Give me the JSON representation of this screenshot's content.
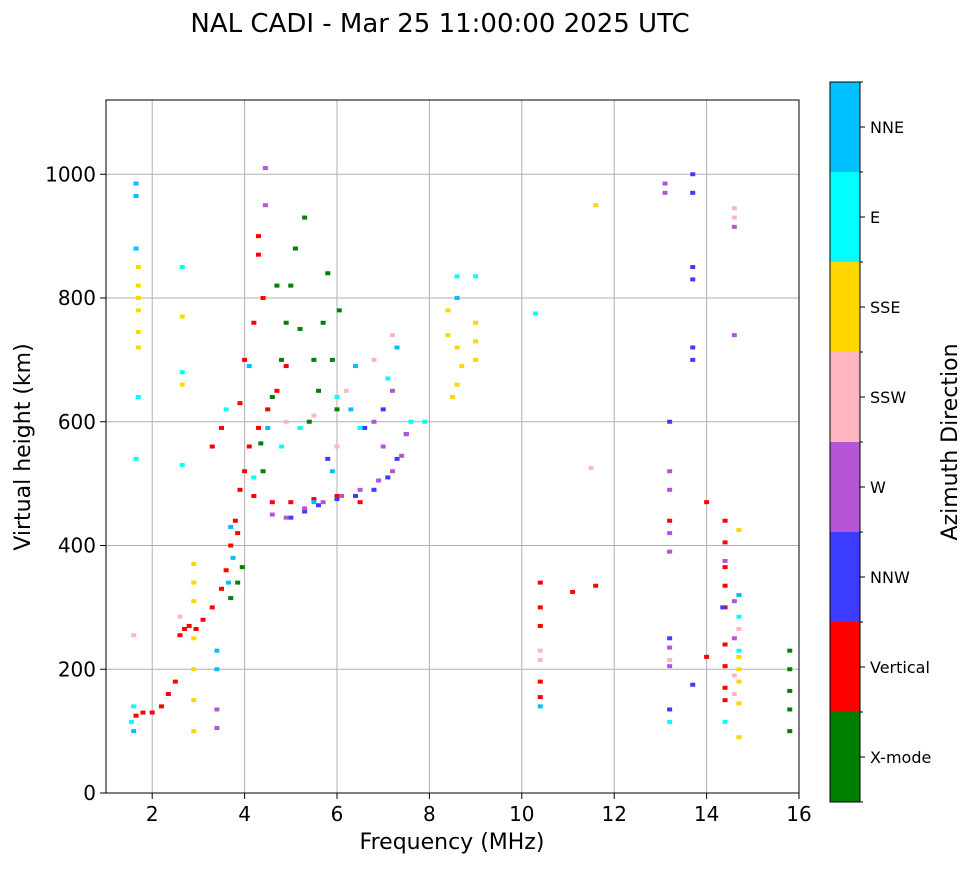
{
  "chart_data": {
    "type": "scatter",
    "title": "NAL CADI - Mar 25 11:00:00 2025 UTC",
    "xlabel": "Frequency (MHz)",
    "ylabel": "Virtual height (km)",
    "xlim": [
      1,
      16
    ],
    "ylim": [
      0,
      1120
    ],
    "xticks": [
      2,
      4,
      6,
      8,
      10,
      12,
      14,
      16
    ],
    "yticks": [
      0,
      200,
      400,
      600,
      800,
      1000
    ],
    "grid": true,
    "colorbar": {
      "label": "Azimuth Direction",
      "categories": [
        {
          "name": "X-mode",
          "color": "#008000"
        },
        {
          "name": "Vertical",
          "color": "#ff0000"
        },
        {
          "name": "NNW",
          "color": "#3c3cff"
        },
        {
          "name": "W",
          "color": "#b455d6"
        },
        {
          "name": "SSW",
          "color": "#ffb6c1"
        },
        {
          "name": "SSE",
          "color": "#ffd700"
        },
        {
          "name": "E",
          "color": "#00ffff"
        },
        {
          "name": "NNE",
          "color": "#00bfff"
        }
      ]
    },
    "series": [
      {
        "name": "X-mode",
        "points": [
          [
            3.7,
            315
          ],
          [
            3.85,
            340
          ],
          [
            3.95,
            365
          ],
          [
            4.35,
            565
          ],
          [
            4.6,
            640
          ],
          [
            4.8,
            700
          ],
          [
            4.9,
            760
          ],
          [
            5.0,
            820
          ],
          [
            5.1,
            880
          ],
          [
            5.3,
            930
          ],
          [
            5.5,
            700
          ],
          [
            5.6,
            650
          ],
          [
            5.7,
            760
          ],
          [
            5.8,
            840
          ],
          [
            5.9,
            700
          ],
          [
            6.0,
            620
          ],
          [
            6.05,
            780
          ],
          [
            4.7,
            820
          ],
          [
            5.2,
            750
          ],
          [
            5.4,
            600
          ],
          [
            4.4,
            520
          ],
          [
            15.8,
            230
          ],
          [
            15.8,
            200
          ],
          [
            15.8,
            165
          ],
          [
            15.8,
            135
          ],
          [
            15.8,
            100
          ]
        ]
      },
      {
        "name": "Vertical",
        "points": [
          [
            1.65,
            125
          ],
          [
            1.8,
            130
          ],
          [
            2.0,
            130
          ],
          [
            2.2,
            140
          ],
          [
            2.35,
            160
          ],
          [
            2.5,
            180
          ],
          [
            2.6,
            255
          ],
          [
            2.7,
            265
          ],
          [
            2.8,
            270
          ],
          [
            2.95,
            265
          ],
          [
            3.1,
            280
          ],
          [
            3.3,
            300
          ],
          [
            3.5,
            330
          ],
          [
            3.6,
            360
          ],
          [
            3.7,
            400
          ],
          [
            3.85,
            420
          ],
          [
            3.8,
            440
          ],
          [
            3.9,
            490
          ],
          [
            4.0,
            520
          ],
          [
            4.1,
            560
          ],
          [
            4.3,
            590
          ],
          [
            4.5,
            620
          ],
          [
            4.7,
            650
          ],
          [
            4.9,
            690
          ],
          [
            3.5,
            590
          ],
          [
            3.3,
            560
          ],
          [
            3.9,
            630
          ],
          [
            4.0,
            700
          ],
          [
            4.2,
            760
          ],
          [
            4.4,
            800
          ],
          [
            4.2,
            480
          ],
          [
            4.6,
            470
          ],
          [
            5.0,
            470
          ],
          [
            5.5,
            475
          ],
          [
            6.0,
            480
          ],
          [
            6.5,
            470
          ],
          [
            4.3,
            870
          ],
          [
            4.3,
            900
          ],
          [
            10.4,
            340
          ],
          [
            10.4,
            300
          ],
          [
            10.4,
            270
          ],
          [
            11.1,
            325
          ],
          [
            11.6,
            335
          ],
          [
            14.4,
            440
          ],
          [
            14.4,
            405
          ],
          [
            14.4,
            365
          ],
          [
            14.4,
            335
          ],
          [
            14.4,
            300
          ],
          [
            14.4,
            240
          ],
          [
            14.4,
            205
          ],
          [
            14.4,
            170
          ],
          [
            14.4,
            150
          ],
          [
            14.0,
            470
          ],
          [
            14.0,
            220
          ],
          [
            13.2,
            440
          ],
          [
            10.4,
            180
          ],
          [
            10.4,
            155
          ]
        ]
      },
      {
        "name": "NNW",
        "points": [
          [
            5.0,
            445
          ],
          [
            5.3,
            455
          ],
          [
            5.6,
            465
          ],
          [
            6.0,
            475
          ],
          [
            6.4,
            480
          ],
          [
            6.8,
            490
          ],
          [
            7.1,
            510
          ],
          [
            7.3,
            540
          ],
          [
            7.5,
            580
          ],
          [
            6.6,
            590
          ],
          [
            7.0,
            620
          ],
          [
            5.8,
            540
          ],
          [
            13.7,
            1000
          ],
          [
            13.7,
            970
          ],
          [
            13.7,
            850
          ],
          [
            13.7,
            830
          ],
          [
            13.7,
            720
          ],
          [
            13.7,
            700
          ],
          [
            14.35,
            300
          ],
          [
            13.2,
            600
          ],
          [
            13.2,
            250
          ],
          [
            13.2,
            135
          ],
          [
            13.7,
            175
          ]
        ]
      },
      {
        "name": "W",
        "points": [
          [
            4.6,
            450
          ],
          [
            4.9,
            445
          ],
          [
            5.3,
            460
          ],
          [
            5.7,
            470
          ],
          [
            6.1,
            480
          ],
          [
            6.5,
            490
          ],
          [
            6.9,
            505
          ],
          [
            7.2,
            520
          ],
          [
            7.4,
            545
          ],
          [
            7.5,
            580
          ],
          [
            7.0,
            560
          ],
          [
            6.8,
            600
          ],
          [
            7.2,
            650
          ],
          [
            4.45,
            1010
          ],
          [
            4.45,
            950
          ],
          [
            3.4,
            135
          ],
          [
            3.4,
            105
          ],
          [
            13.1,
            985
          ],
          [
            13.1,
            970
          ],
          [
            14.6,
            915
          ],
          [
            14.6,
            740
          ],
          [
            13.2,
            520
          ],
          [
            13.2,
            490
          ],
          [
            13.2,
            420
          ],
          [
            13.2,
            390
          ],
          [
            13.2,
            235
          ],
          [
            13.2,
            205
          ],
          [
            14.4,
            375
          ],
          [
            14.6,
            310
          ],
          [
            14.6,
            250
          ]
        ]
      },
      {
        "name": "SSW",
        "points": [
          [
            1.6,
            255
          ],
          [
            2.6,
            285
          ],
          [
            4.9,
            600
          ],
          [
            5.5,
            610
          ],
          [
            6.2,
            650
          ],
          [
            6.8,
            700
          ],
          [
            7.2,
            740
          ],
          [
            6.0,
            560
          ],
          [
            10.4,
            230
          ],
          [
            10.4,
            215
          ],
          [
            11.5,
            525
          ],
          [
            14.6,
            945
          ],
          [
            14.6,
            930
          ],
          [
            14.7,
            265
          ],
          [
            14.6,
            190
          ],
          [
            14.6,
            160
          ],
          [
            13.2,
            215
          ]
        ]
      },
      {
        "name": "SSE",
        "points": [
          [
            1.7,
            850
          ],
          [
            1.7,
            820
          ],
          [
            1.7,
            800
          ],
          [
            1.7,
            780
          ],
          [
            1.7,
            745
          ],
          [
            1.7,
            720
          ],
          [
            2.65,
            770
          ],
          [
            2.65,
            660
          ],
          [
            2.9,
            370
          ],
          [
            2.9,
            340
          ],
          [
            2.9,
            310
          ],
          [
            2.9,
            250
          ],
          [
            2.9,
            200
          ],
          [
            2.9,
            150
          ],
          [
            2.9,
            100
          ],
          [
            8.4,
            780
          ],
          [
            8.4,
            740
          ],
          [
            8.6,
            720
          ],
          [
            8.7,
            690
          ],
          [
            8.6,
            660
          ],
          [
            8.5,
            640
          ],
          [
            9.0,
            760
          ],
          [
            9.0,
            730
          ],
          [
            9.0,
            700
          ],
          [
            11.6,
            950
          ],
          [
            14.7,
            425
          ],
          [
            14.7,
            220
          ],
          [
            14.7,
            200
          ],
          [
            14.7,
            180
          ],
          [
            14.7,
            145
          ],
          [
            14.7,
            90
          ]
        ]
      },
      {
        "name": "E",
        "points": [
          [
            1.55,
            115
          ],
          [
            1.6,
            140
          ],
          [
            1.65,
            540
          ],
          [
            1.7,
            640
          ],
          [
            2.65,
            530
          ],
          [
            2.65,
            680
          ],
          [
            2.65,
            850
          ],
          [
            3.6,
            620
          ],
          [
            4.2,
            510
          ],
          [
            4.8,
            560
          ],
          [
            5.2,
            590
          ],
          [
            6.0,
            640
          ],
          [
            6.5,
            590
          ],
          [
            7.1,
            670
          ],
          [
            7.6,
            600
          ],
          [
            7.9,
            600
          ],
          [
            8.6,
            835
          ],
          [
            9.0,
            835
          ],
          [
            10.3,
            775
          ],
          [
            14.4,
            115
          ],
          [
            14.7,
            285
          ],
          [
            14.7,
            230
          ],
          [
            13.2,
            115
          ]
        ]
      },
      {
        "name": "NNE",
        "points": [
          [
            1.65,
            985
          ],
          [
            1.65,
            965
          ],
          [
            1.65,
            880
          ],
          [
            1.6,
            100
          ],
          [
            3.4,
            230
          ],
          [
            3.4,
            200
          ],
          [
            3.7,
            430
          ],
          [
            3.75,
            380
          ],
          [
            3.65,
            340
          ],
          [
            4.1,
            690
          ],
          [
            4.5,
            590
          ],
          [
            5.5,
            470
          ],
          [
            5.9,
            520
          ],
          [
            6.3,
            620
          ],
          [
            6.4,
            690
          ],
          [
            7.3,
            720
          ],
          [
            8.6,
            800
          ],
          [
            10.4,
            140
          ],
          [
            14.7,
            320
          ]
        ]
      }
    ]
  }
}
